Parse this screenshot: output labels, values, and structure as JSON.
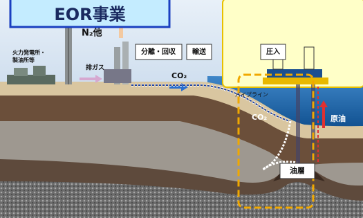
{
  "title": "EOR事業",
  "labels": {
    "n2": "N₂他",
    "plant_line1": "火力発電所・",
    "plant_line2": "製油所等",
    "exhaust": "排ガス",
    "separation": "分離・回収",
    "transport": "輸送",
    "co2_transport": "CO₂",
    "pipeline": "パイプライン",
    "injection": "圧入",
    "co2_injected": "CO₂",
    "crude_oil": "原油",
    "reservoir": "油層"
  }
}
